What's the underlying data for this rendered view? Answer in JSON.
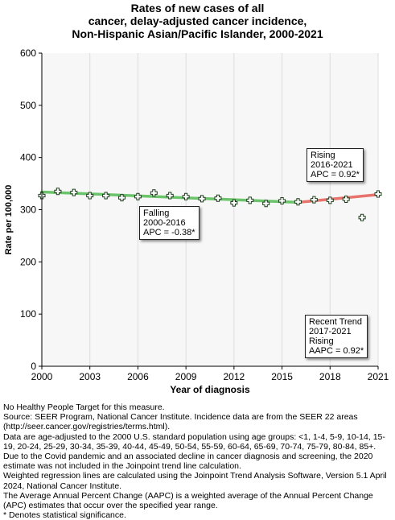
{
  "title": {
    "line1": "Rates of new cases of all",
    "line2": "cancer, delay-adjusted cancer incidence,",
    "line3": "Non-Hispanic Asian/Pacific Islander,  2000-2021"
  },
  "chart_data": {
    "type": "scatter",
    "xlabel": "Year of diagnosis",
    "ylabel": "Rate per 100,000",
    "xlim": [
      2000,
      2021
    ],
    "ylim": [
      0,
      600
    ],
    "x_ticks": [
      2000,
      2003,
      2006,
      2009,
      2012,
      2015,
      2018,
      2021
    ],
    "y_ticks": [
      0,
      100,
      200,
      300,
      400,
      500,
      600
    ],
    "grid": "vertical",
    "observed": {
      "x": [
        2000,
        2001,
        2002,
        2003,
        2004,
        2005,
        2006,
        2007,
        2008,
        2009,
        2010,
        2011,
        2012,
        2013,
        2014,
        2015,
        2016,
        2017,
        2018,
        2019,
        2020,
        2021
      ],
      "y": [
        327,
        335,
        333,
        327,
        327,
        323,
        325,
        332,
        327,
        325,
        321,
        322,
        313,
        318,
        312,
        317,
        315,
        319,
        318,
        320,
        285,
        330
      ]
    },
    "trend_segments": [
      {
        "x": [
          2000,
          2016
        ],
        "y": [
          334,
          314
        ],
        "color": "#6bc46b"
      },
      {
        "x": [
          2016,
          2021
        ],
        "y": [
          314,
          329
        ],
        "color": "#e8736c"
      }
    ]
  },
  "callouts": {
    "rising": {
      "line1": "Rising",
      "line2": "2016-2021",
      "line3": "APC =  0.92*"
    },
    "falling": {
      "line1": "Falling",
      "line2": "2000-2016",
      "line3": "APC = -0.38*"
    },
    "recent": {
      "line1": "Recent Trend",
      "line2": "2017-2021",
      "line3": "Rising",
      "line4": "AAPC =  0.92*"
    }
  },
  "footnotes": {
    "n1": "No Healthy People Target for this measure.",
    "n2": "Source: SEER Program, National Cancer Institute. Incidence data are from the SEER 22 areas (http://seer.cancer.gov/registries/terms.html).",
    "n3": "Data are age-adjusted to the 2000 U.S. standard population using age groups: <1, 1-4, 5-9, 10-14, 15-19, 20-24, 25-29, 30-34, 35-39, 40-44, 45-49, 50-54, 55-59, 60-64, 65-69, 70-74, 75-79, 80-84, 85+.",
    "n4": "Due to the Covid pandemic and an associated decline in cancer diagnosis and screening, the 2020 estimate was not included in the Joinpoint trend line calculation.",
    "n5": "Weighted regression lines are calculated using the Joinpoint Trend Analysis Software, Version 5.1 April 2024, National Cancer Institute.",
    "n6": "The Average Annual Percent Change (AAPC) is a weighted average of the Annual Percent Change (APC) estimates that occur over the specified year range.",
    "n7": "* Denotes statistical significance."
  }
}
